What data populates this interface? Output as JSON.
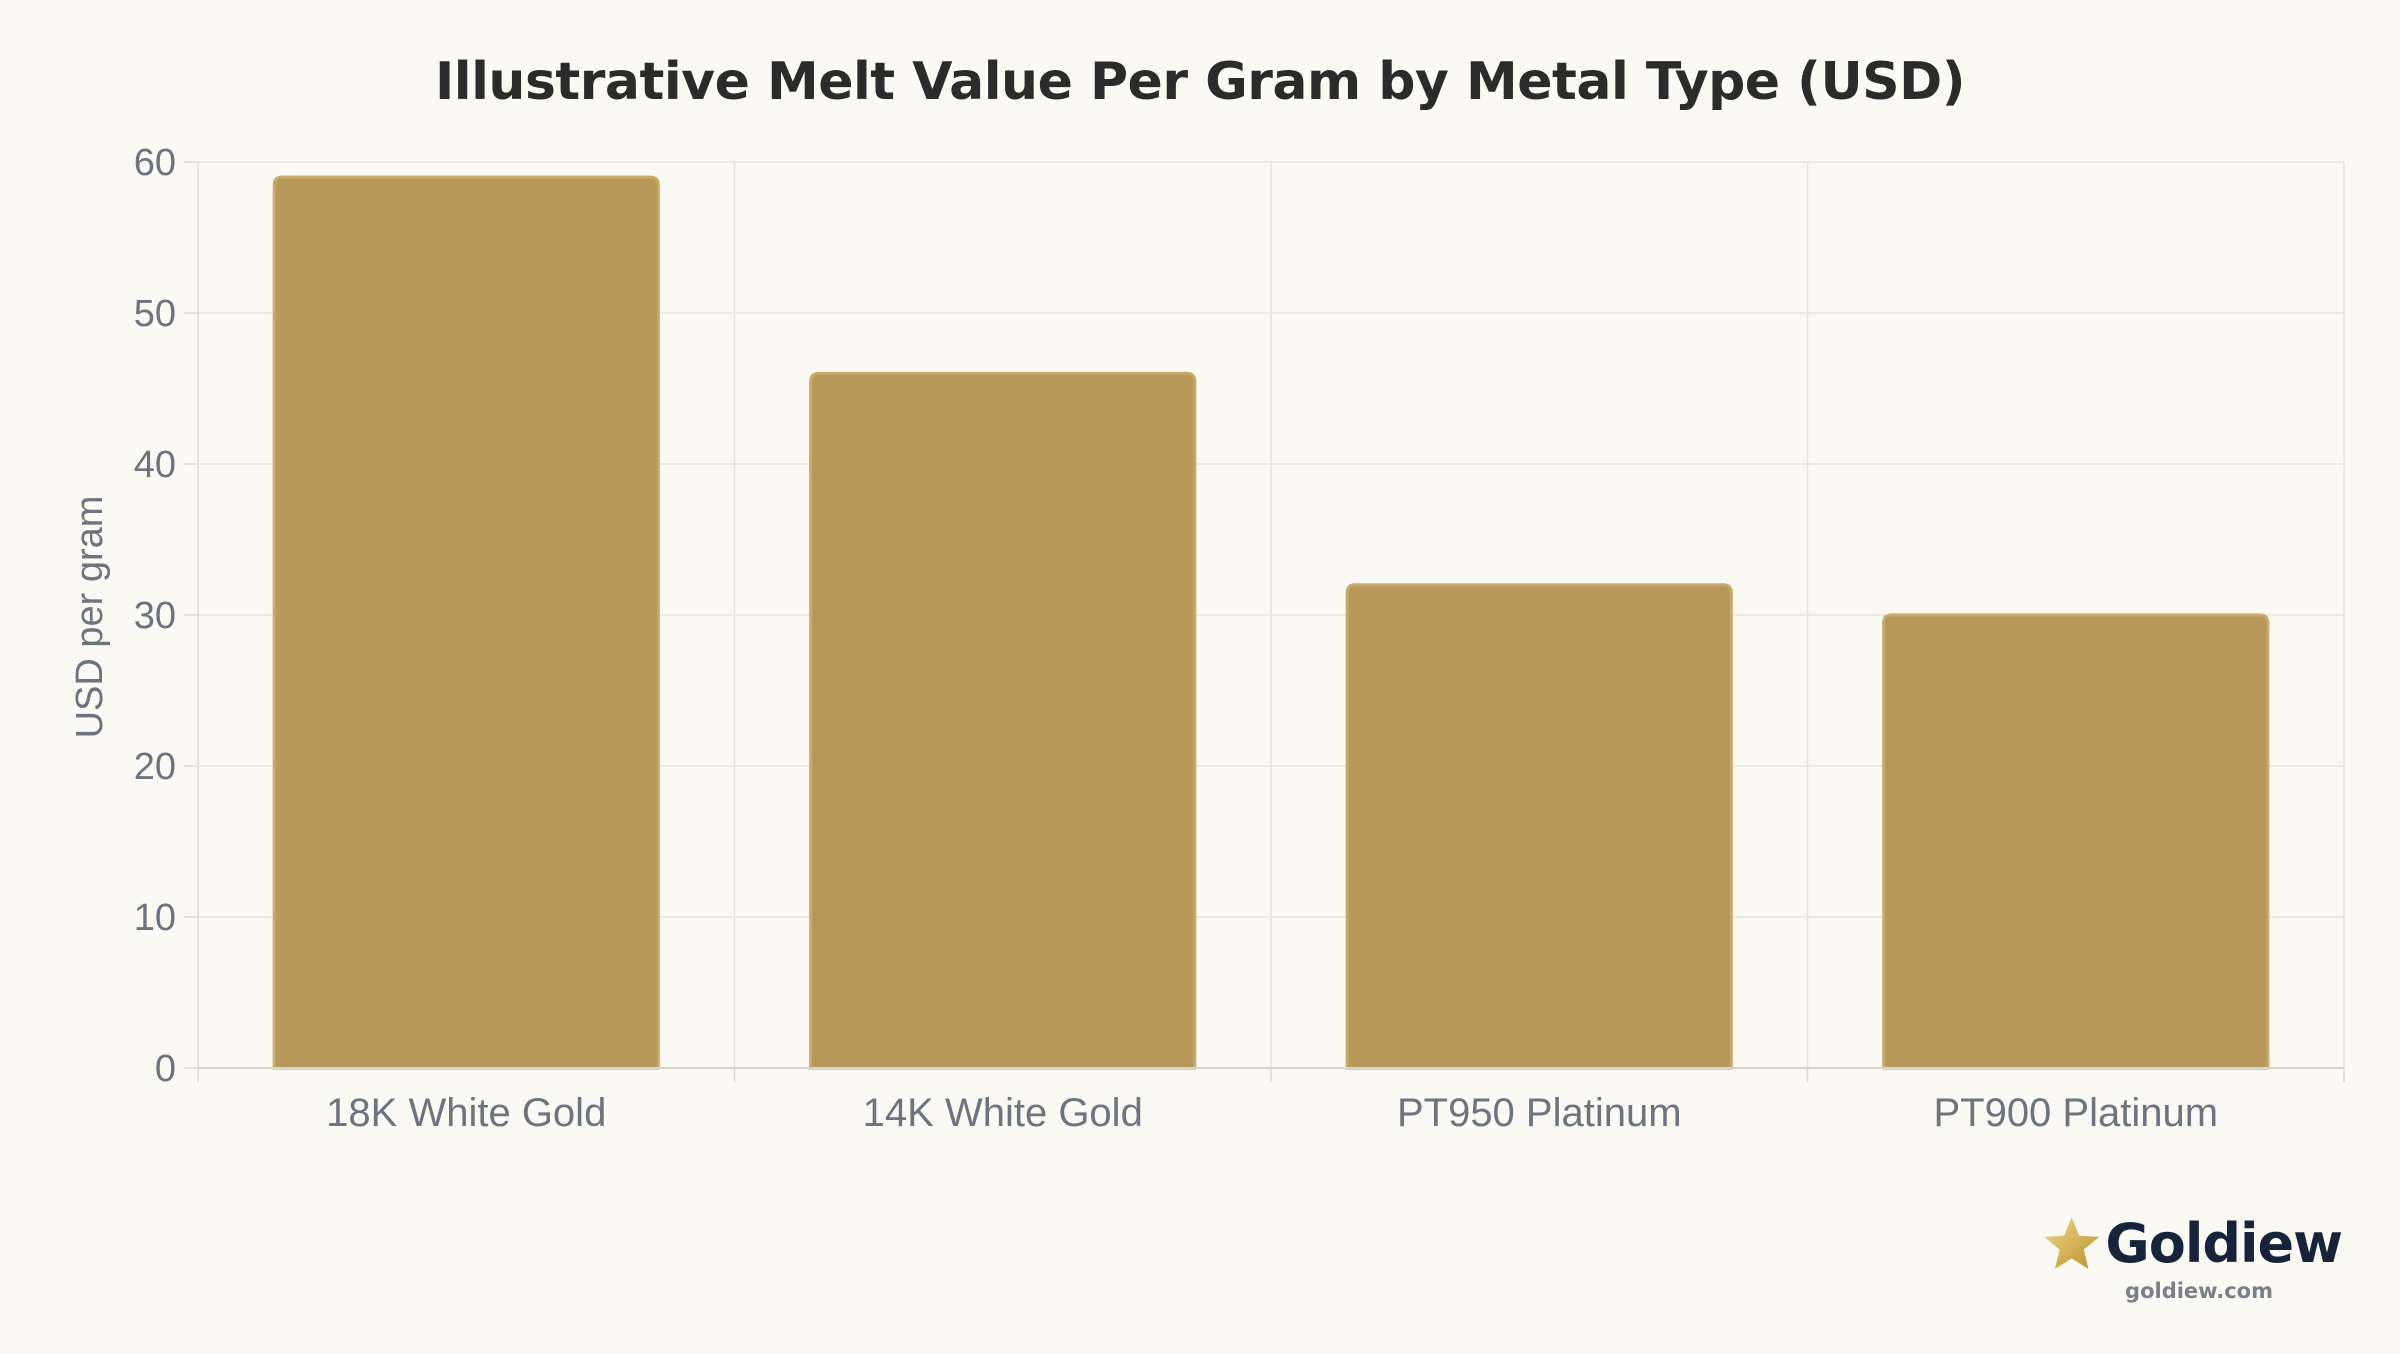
{
  "chart_data": {
    "type": "bar",
    "title": "Illustrative Melt Value Per Gram by Metal Type (USD)",
    "xlabel": "",
    "ylabel": "USD per gram",
    "categories": [
      "18K White Gold",
      "14K White Gold",
      "PT950 Platinum",
      "PT900 Platinum"
    ],
    "values": [
      59,
      46,
      32,
      30
    ],
    "ylim": [
      0,
      60
    ],
    "yticks": [
      0,
      10,
      20,
      30,
      40,
      50,
      60
    ],
    "grid": true,
    "legend": "none",
    "bar_color": "#b8975a"
  },
  "brand": {
    "name": "Goldiew",
    "url": "goldiew.com",
    "icon": "star-icon",
    "icon_color": "#d4b04c"
  }
}
